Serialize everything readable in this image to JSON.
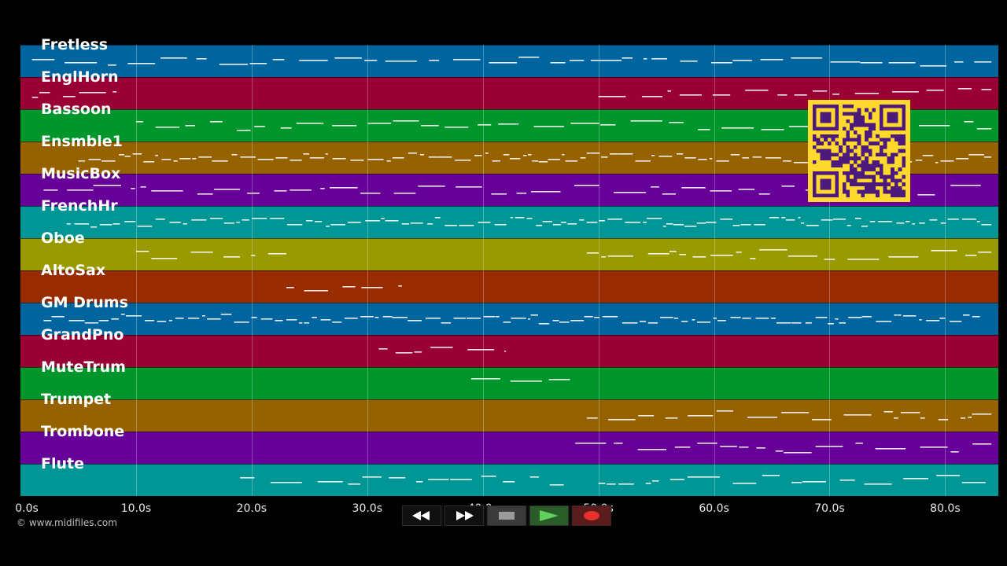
{
  "tracks": [
    {
      "name": "Fretless",
      "color": "#00649f"
    },
    {
      "name": "EnglHorn",
      "color": "#990033"
    },
    {
      "name": "Bassoon",
      "color": "#00962c"
    },
    {
      "name": "Ensmble1",
      "color": "#966200"
    },
    {
      "name": "MusicBox",
      "color": "#660099"
    },
    {
      "name": "FrenchHr",
      "color": "#009696"
    },
    {
      "name": "Oboe",
      "color": "#999900"
    },
    {
      "name": "AltoSax",
      "color": "#992b00"
    },
    {
      "name": "GM Drums",
      "color": "#00649f"
    },
    {
      "name": "GrandPno",
      "color": "#990033"
    },
    {
      "name": "MuteTrum",
      "color": "#00962c"
    },
    {
      "name": "Trumpet",
      "color": "#966200"
    },
    {
      "name": "Trombone",
      "color": "#660099"
    },
    {
      "name": "Flute",
      "color": "#009696"
    }
  ],
  "time_axis": {
    "ticks": [
      "0.0s",
      "10.0s",
      "20.0s",
      "30.0s",
      "40.0s",
      "50.0s",
      "60.0s",
      "70.0s",
      "80.0s"
    ],
    "tick_values": [
      0,
      10,
      20,
      30,
      40,
      50,
      60,
      70,
      80
    ],
    "max_seconds": 84.6
  },
  "copyright": "© www.midifiles.com",
  "transport": {
    "buttons": [
      {
        "name": "rewind-button",
        "icon": "rewind-icon"
      },
      {
        "name": "fast-forward-button",
        "icon": "fast-forward-icon"
      },
      {
        "name": "stop-button",
        "icon": "stop-icon"
      },
      {
        "name": "play-button",
        "icon": "play-icon"
      },
      {
        "name": "record-button",
        "icon": "record-icon"
      }
    ]
  },
  "qr_code": {
    "icon": "qr-code-icon",
    "color": "#ffd92e"
  },
  "note_color": "#ffffff"
}
